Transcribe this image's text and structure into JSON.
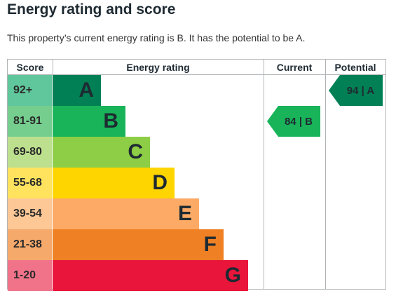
{
  "heading": "Energy rating and score",
  "summary": "This property’s current energy rating is B. It has the potential to be A.",
  "columns": {
    "score": "Score",
    "rating": "Energy rating",
    "current": "Current",
    "potential": "Potential"
  },
  "bands": [
    {
      "score": "92+",
      "letter": "A",
      "bar_color": "#008054",
      "score_color": "#5fc79b"
    },
    {
      "score": "81-91",
      "letter": "B",
      "bar_color": "#19b459",
      "score_color": "#75ce8e"
    },
    {
      "score": "69-80",
      "letter": "C",
      "bar_color": "#8dce46",
      "score_color": "#bde08f"
    },
    {
      "score": "55-68",
      "letter": "D",
      "bar_color": "#ffd500",
      "score_color": "#ffe35e"
    },
    {
      "score": "39-54",
      "letter": "E",
      "bar_color": "#fcaa65",
      "score_color": "#fdc796"
    },
    {
      "score": "21-38",
      "letter": "F",
      "bar_color": "#ef8023",
      "score_color": "#f5a96b"
    },
    {
      "score": "1-20",
      "letter": "G",
      "bar_color": "#e9153b",
      "score_color": "#f0738a"
    }
  ],
  "current": {
    "label": "84 | B",
    "band": "B",
    "color": "#19b459"
  },
  "potential": {
    "label": "94 | A",
    "band": "A",
    "color": "#008054"
  }
}
